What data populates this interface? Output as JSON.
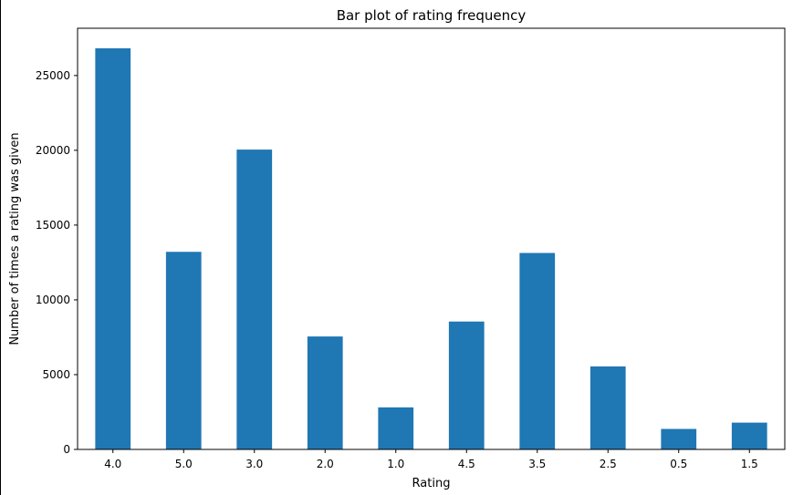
{
  "chart_data": {
    "type": "bar",
    "title": "Bar plot of rating frequency",
    "xlabel": "Rating",
    "ylabel": "Number of times a rating was given",
    "categories": [
      "4.0",
      "5.0",
      "3.0",
      "2.0",
      "1.0",
      "4.5",
      "3.5",
      "2.5",
      "0.5",
      "1.5"
    ],
    "values": [
      26818,
      13211,
      20047,
      7551,
      2811,
      8551,
      13136,
      5550,
      1370,
      1791
    ],
    "ylim": [
      0,
      28160
    ],
    "yticks": [
      0,
      5000,
      10000,
      15000,
      20000,
      25000
    ],
    "ytick_labels": [
      "0",
      "5000",
      "10000",
      "15000",
      "20000",
      "25000"
    ],
    "grid": false,
    "colors": {
      "bar": "#1f77b4"
    }
  }
}
